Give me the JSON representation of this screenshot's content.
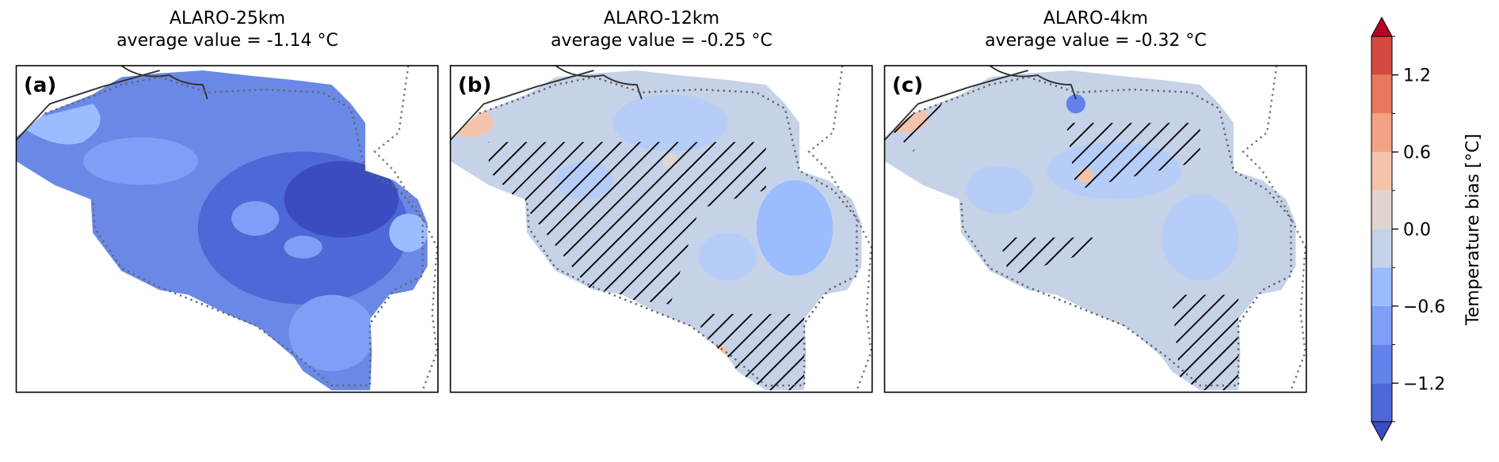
{
  "panels": [
    {
      "title": "ALARO-25km",
      "subtitle": "average value = -1.14 °C",
      "label": "(a)"
    },
    {
      "title": "ALARO-12km",
      "subtitle": "average value = -0.25 °C",
      "label": "(b)"
    },
    {
      "title": "ALARO-4km",
      "subtitle": "average value = -0.32 °C",
      "label": "(c)"
    }
  ],
  "colorbar": {
    "label": "Temperature bias [°C]",
    "lim": [
      -1.5,
      1.5
    ],
    "levels": [
      -1.5,
      -1.2,
      -0.9,
      -0.6,
      -0.3,
      0,
      0.3,
      0.6,
      0.9,
      1.2,
      1.5
    ],
    "colors": [
      "#4d68d7",
      "#6282ea",
      "#7d9ff5",
      "#9bbcff",
      "#c6d2e8",
      "#e0d6d0",
      "#f3c4ab",
      "#f4a285",
      "#e8785d",
      "#d24b40"
    ],
    "under_color": "#3b4cc0",
    "over_color": "#b40426",
    "ticks": [
      {
        "value": -1.2,
        "label": "−1.2"
      },
      {
        "value": -0.6,
        "label": "−0.6"
      },
      {
        "value": 0,
        "label": "0.0"
      },
      0.6,
      1.2
    ]
  }
}
